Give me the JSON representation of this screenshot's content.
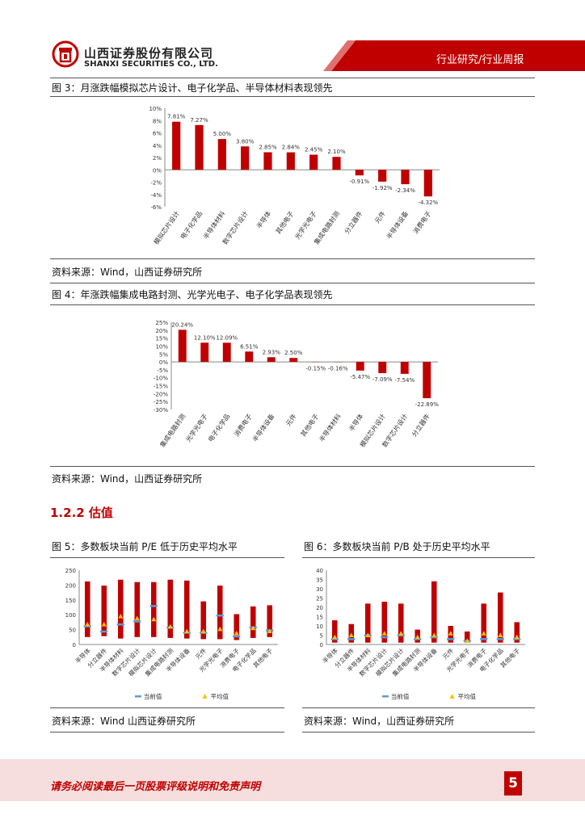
{
  "header": {
    "company_cn": "山西证券股份有限公司",
    "company_en": "SHANXI SECURITIES CO., LTD.",
    "category": "行业研究/行业周报"
  },
  "figures": {
    "fig3": {
      "caption": "图 3：月涨跌幅模拟芯片设计、电子化学品、半导体材料表现领先",
      "source": "资料来源：Wind，山西证券研究所"
    },
    "fig4": {
      "caption": "图 4：年涨跌幅集成电路封测、光学光电子、电子化学品表现领先",
      "source": "资料来源：Wind，山西证券研究所"
    },
    "fig5": {
      "caption": "图 5：多数板块当前 P/E 低于历史平均水平",
      "source": "资料来源：Wind 山西证券研究所"
    },
    "fig6": {
      "caption": "图 6：多数板块当前 P/B 处于历史平均水平",
      "source": "资料来源：Wind，山西证券研究所"
    }
  },
  "section": {
    "title": "1.2.2 估值"
  },
  "footer": {
    "disclaimer": "请务必阅读最后一页股票评级说明和免责声明",
    "page": "5"
  },
  "colors": {
    "brand": "#c00000",
    "bar": "#c00000",
    "current": "#5b9bd5",
    "average": "#ffc000"
  },
  "chart_data": [
    {
      "type": "bar",
      "categories": [
        "模拟芯片设计",
        "电子化学品",
        "半导体材料",
        "数字芯片设计",
        "半导体",
        "其他电子",
        "光学光电子",
        "集成电路封测",
        "分立器件",
        "元件",
        "半导体设备",
        "消费电子"
      ],
      "values": [
        7.81,
        7.27,
        5.0,
        3.8,
        2.85,
        2.84,
        2.45,
        2.1,
        -0.91,
        -1.92,
        -2.34,
        -4.32
      ],
      "labels": [
        "7.81%",
        "7.27%",
        "5.00%",
        "3.80%",
        "2.85%",
        "2.84%",
        "2.45%",
        "2.10%",
        "-0.91%",
        "-1.92%",
        "-2.34%",
        "-4.32%"
      ],
      "ylim": [
        -6,
        10
      ],
      "yticks": [
        "10%",
        "8%",
        "6%",
        "4%",
        "2%",
        "0%",
        "-2%",
        "-4%",
        "-6%"
      ],
      "title": "",
      "xlabel": "",
      "ylabel": ""
    },
    {
      "type": "bar",
      "categories": [
        "集成电路封测",
        "光学光电子",
        "电子化学品",
        "消费电子",
        "半导体设备",
        "元件",
        "其他电子",
        "半导体材料",
        "半导体",
        "模拟芯片设计",
        "数字芯片设计",
        "分立器件"
      ],
      "values": [
        20.24,
        12.1,
        12.09,
        6.51,
        2.93,
        2.5,
        -0.15,
        -0.16,
        -5.47,
        -7.09,
        -7.54,
        -22.89
      ],
      "labels": [
        "20.24%",
        "12.10%",
        "12.09%",
        "6.51%",
        "2.93%",
        "2.50%",
        "-0.15%",
        "-0.16%",
        "-5.47%",
        "-7.09%",
        "-7.54%",
        "-22.89%"
      ],
      "ylim": [
        -30,
        25
      ],
      "yticks": [
        "25%",
        "20%",
        "15%",
        "10%",
        "5%",
        "0%",
        "-5%",
        "-10%",
        "-15%",
        "-20%",
        "-25%",
        "-30%"
      ],
      "title": "",
      "xlabel": "",
      "ylabel": ""
    },
    {
      "type": "bar",
      "categories": [
        "半导体",
        "分立器件",
        "半导体材料",
        "数字芯片设计",
        "模拟芯片设计",
        "集成电路封测",
        "半导体设备",
        "元件",
        "光学光电子",
        "消费电子",
        "电子化学品",
        "其他电子"
      ],
      "high": [
        212,
        198,
        218,
        210,
        210,
        218,
        215,
        145,
        198,
        102,
        128,
        132
      ],
      "low": [
        25,
        28,
        20,
        25,
        25,
        22,
        20,
        18,
        18,
        15,
        22,
        25
      ],
      "series": [
        {
          "name": "当前值",
          "values": [
            62,
            44,
            68,
            78,
            130,
            58,
            40,
            40,
            98,
            28,
            58,
            48
          ]
        },
        {
          "name": "平均值",
          "values": [
            68,
            68,
            95,
            88,
            85,
            60,
            45,
            45,
            52,
            38,
            55,
            45
          ]
        }
      ],
      "ylim": [
        0,
        250
      ],
      "yticks": [
        "250",
        "200",
        "150",
        "100",
        "50",
        "0"
      ],
      "legend": "bottom",
      "title": "",
      "xlabel": "",
      "ylabel": ""
    },
    {
      "type": "bar",
      "categories": [
        "半导体",
        "分立器件",
        "半导体材料",
        "数字芯片设计",
        "模拟芯片设计",
        "集成电路封测",
        "半导体设备",
        "元件",
        "光学光电子",
        "消费电子",
        "电子化学品",
        "其他电子"
      ],
      "high": [
        13,
        11,
        22,
        23,
        22,
        8,
        34,
        10,
        7,
        22,
        28,
        12
      ],
      "low": [
        1,
        1,
        1,
        1,
        1,
        1,
        1,
        1,
        1,
        1,
        1,
        1
      ],
      "series": [
        {
          "name": "当前值",
          "values": [
            3,
            3,
            5,
            4,
            5,
            3,
            4,
            3,
            2,
            3,
            3,
            3
          ]
        },
        {
          "name": "平均值",
          "values": [
            4,
            5,
            5,
            6,
            6,
            4,
            5,
            6,
            2,
            6,
            5,
            4
          ]
        }
      ],
      "ylim": [
        0,
        40
      ],
      "yticks": [
        "40",
        "35",
        "30",
        "25",
        "20",
        "15",
        "10",
        "5",
        "0"
      ],
      "legend": "bottom",
      "title": "",
      "xlabel": "",
      "ylabel": ""
    }
  ]
}
